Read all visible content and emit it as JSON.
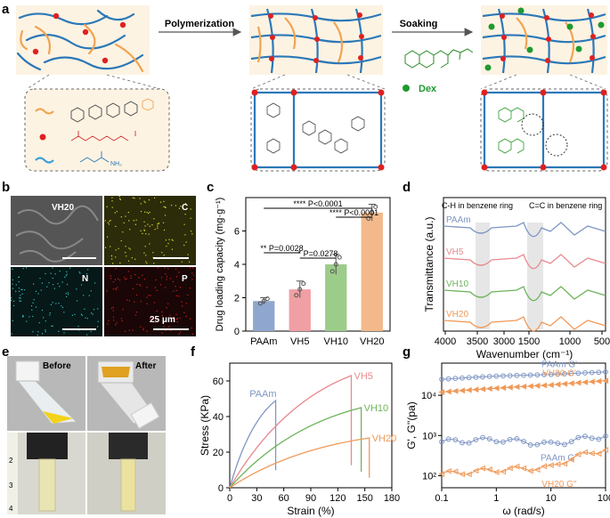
{
  "panels": {
    "a": "a",
    "b": "b",
    "c": "c",
    "d": "d",
    "e": "e",
    "f": "f",
    "g": "g"
  },
  "panel_a": {
    "step1": "Polymerization",
    "step2": "Soaking",
    "dex_label": "Dex"
  },
  "panel_b": {
    "tiles": [
      "VH20",
      "C",
      "N",
      "P"
    ],
    "scale": "25 μm"
  },
  "panel_e": {
    "before": "Before",
    "after": "After",
    "ruler": [
      "2",
      "3",
      "4"
    ]
  },
  "chart_data": [
    {
      "panel": "c",
      "type": "bar",
      "categories": [
        "PAAm",
        "VH5",
        "VH10",
        "VH20"
      ],
      "values": [
        1.8,
        2.5,
        4.0,
        7.1
      ],
      "errors": [
        0.2,
        0.5,
        0.6,
        0.5
      ],
      "colors": [
        "#8fa6cf",
        "#f0a0a4",
        "#9ccc8a",
        "#f3b98a"
      ],
      "ylabel": "Drug loading capacity (mg·g⁻¹)",
      "ylim": [
        0,
        8
      ],
      "yticks": [
        "0",
        "2",
        "4",
        "6"
      ],
      "significance": [
        {
          "label": "**** P<0.0001",
          "from": "PAAm",
          "to": "VH20"
        },
        {
          "label": "**** P<0.0001",
          "from": "VH10",
          "to": "VH20"
        },
        {
          "label": "** P=0.0028",
          "from": "PAAm",
          "to": "VH5"
        },
        {
          "label": "* P=0.0278",
          "from": "VH5",
          "to": "VH10"
        }
      ]
    },
    {
      "panel": "d",
      "type": "line",
      "xlabel": "Wavenumber (cm⁻¹)",
      "ylabel": "Transmittance (a.u.)",
      "xticks": [
        "4000",
        "3500",
        "3000",
        "1500",
        "1000",
        "500"
      ],
      "series": [
        "PAAm",
        "VH5",
        "VH10",
        "VH20"
      ],
      "colors": [
        "#7f96c4",
        "#e88a90",
        "#6fb35c",
        "#ef9a5a"
      ],
      "annotations": [
        "C-H in benzene ring",
        "C=C in benzene ring"
      ]
    },
    {
      "panel": "f",
      "type": "line",
      "xlabel": "Strain (%)",
      "ylabel": "Stress (KPa)",
      "xlim": [
        0,
        180
      ],
      "ylim": [
        0,
        70
      ],
      "xticks": [
        "0",
        "30",
        "60",
        "90",
        "120",
        "150",
        "180"
      ],
      "yticks": [
        "0",
        "20",
        "40",
        "60"
      ],
      "series": [
        {
          "name": "PAAm",
          "color": "#7f96c4",
          "break_strain": 51,
          "peak_stress": 49
        },
        {
          "name": "VH5",
          "color": "#e88a90",
          "break_strain": 135,
          "peak_stress": 63
        },
        {
          "name": "VH10",
          "color": "#6fb35c",
          "break_strain": 146,
          "peak_stress": 45
        },
        {
          "name": "VH20",
          "color": "#ef9a5a",
          "break_strain": 155,
          "peak_stress": 28
        }
      ]
    },
    {
      "panel": "g",
      "type": "scatter",
      "xlabel": "ω (rad/s)",
      "ylabel": "G', G''(pa)",
      "xticks": [
        "0.1",
        "1",
        "10",
        "100"
      ],
      "yticks": [
        "10²",
        "10³",
        "10⁴"
      ],
      "series": [
        {
          "name": "PAAm G'",
          "color": "#7f96c4",
          "values": [
            25000,
            30000,
            33000,
            38000
          ]
        },
        {
          "name": "VH20 G'",
          "color": "#ef9a5a",
          "values": [
            12000,
            15000,
            18000,
            23000
          ]
        },
        {
          "name": "PAAm G''",
          "color": "#7f96c4",
          "values": [
            700,
            800,
            600,
            1000
          ]
        },
        {
          "name": "VH20 G''",
          "color": "#ef9a5a",
          "values": [
            110,
            140,
            160,
            450
          ]
        }
      ]
    }
  ]
}
